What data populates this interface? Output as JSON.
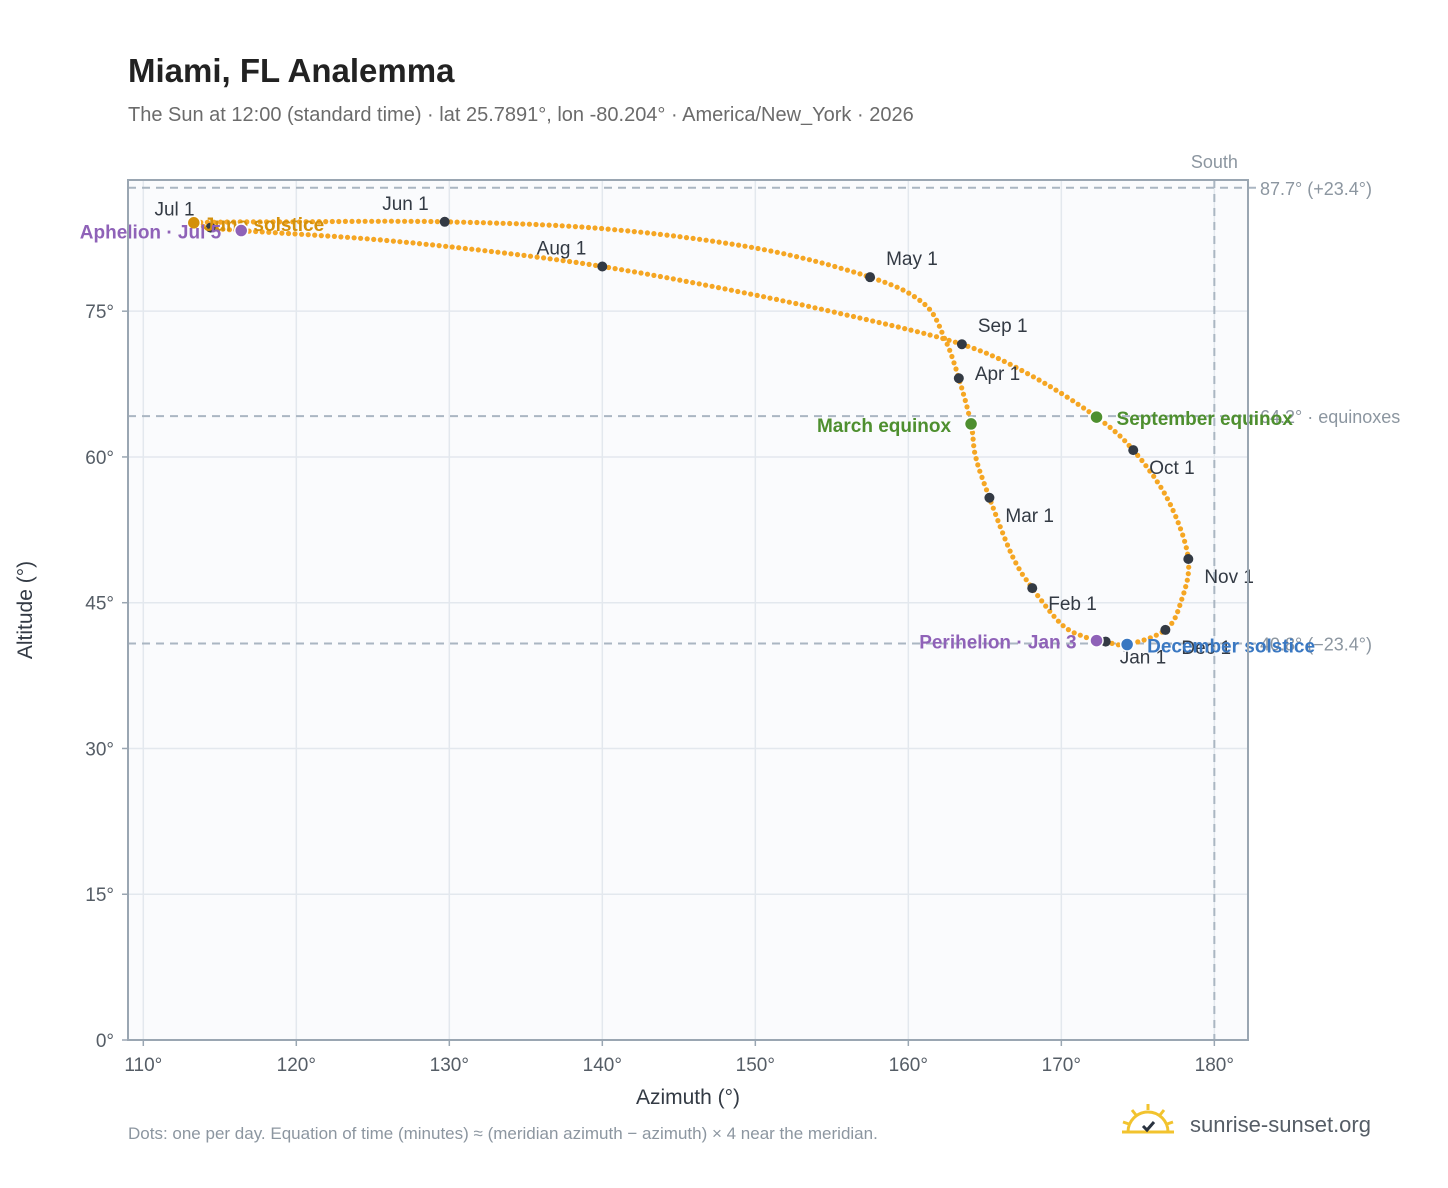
{
  "title": "Miami, FL Analemma",
  "subtitle": "The Sun at 12:00 (standard time) · lat 25.7891°, lon -80.204° · America/New_York · 2026",
  "footnote": "Dots: one per day. Equation of time (minutes) ≈ (meridian azimuth − azimuth) × 4 near the meridian.",
  "brand": {
    "name": "sunrise-sunset.org",
    "icon": "sun-logo-icon"
  },
  "colors": {
    "curve": "#f5a623",
    "month_dot": "#333a44",
    "equinox": "#4e8f2f",
    "solstice_june": "#d4900a",
    "solstice_dec": "#3a78c2",
    "apsis": "#8f62b8",
    "grid": "#e3e8ee",
    "plot_bg": "#fafbfd",
    "ref_line": "#aab6c2"
  },
  "chart_data": {
    "type": "scatter",
    "title": "Miami, FL Analemma",
    "xlabel": "Azimuth (°)",
    "ylabel": "Altitude (°)",
    "xlim": [
      109,
      182.2
    ],
    "ylim": [
      0,
      88.5
    ],
    "xticks": [
      110,
      120,
      130,
      140,
      150,
      160,
      170,
      180
    ],
    "xtick_labels": [
      "110°",
      "120°",
      "130°",
      "140°",
      "150°",
      "160°",
      "170°",
      "180°"
    ],
    "yticks": [
      0,
      15,
      30,
      45,
      60,
      75
    ],
    "ytick_labels": [
      "0°",
      "15°",
      "30°",
      "45°",
      "60°",
      "75°"
    ],
    "grid": true,
    "meridian": {
      "x": 180,
      "label": "South"
    },
    "reference_lines": [
      {
        "y": 87.7,
        "label": "87.7° (+23.4°)"
      },
      {
        "y": 64.2,
        "label": "64.2° · equinoxes"
      },
      {
        "y": 40.8,
        "label": "40.8° (−23.4°)"
      }
    ],
    "month_points": [
      {
        "label": "Jan 1",
        "x": 172.9,
        "y": 41.0
      },
      {
        "label": "Feb 1",
        "x": 168.1,
        "y": 46.5
      },
      {
        "label": "Mar 1",
        "x": 165.3,
        "y": 55.8
      },
      {
        "label": "Apr 1",
        "x": 163.3,
        "y": 68.1
      },
      {
        "label": "May 1",
        "x": 157.5,
        "y": 78.5
      },
      {
        "label": "Jun 1",
        "x": 129.7,
        "y": 84.2
      },
      {
        "label": "Jul 1",
        "x": 114.4,
        "y": 83.6
      },
      {
        "label": "Aug 1",
        "x": 140.0,
        "y": 79.6
      },
      {
        "label": "Sep 1",
        "x": 163.5,
        "y": 71.6
      },
      {
        "label": "Oct 1",
        "x": 174.7,
        "y": 60.7
      },
      {
        "label": "Nov 1",
        "x": 178.3,
        "y": 49.5
      },
      {
        "label": "Dec 1",
        "x": 176.8,
        "y": 42.2
      }
    ],
    "events": [
      {
        "label": "March equinox",
        "x": 164.1,
        "y": 63.4,
        "kind": "equinox"
      },
      {
        "label": "September equinox",
        "x": 172.3,
        "y": 64.1,
        "kind": "equinox"
      },
      {
        "label": "June solstice",
        "x": 113.3,
        "y": 84.1,
        "kind": "solstice_june"
      },
      {
        "label": "December solstice",
        "x": 174.3,
        "y": 40.7,
        "kind": "solstice_dec"
      },
      {
        "label": "Perihelion · Jan 3",
        "x": 172.3,
        "y": 41.1,
        "kind": "apsis"
      },
      {
        "label": "Aphelion · Jul 5",
        "x": 116.4,
        "y": 83.3,
        "kind": "apsis"
      }
    ],
    "curve_path": [
      {
        "x": 172.9,
        "y": 41.0
      },
      {
        "x": 171.5,
        "y": 41.5
      },
      {
        "x": 170.0,
        "y": 42.8
      },
      {
        "x": 168.1,
        "y": 46.5
      },
      {
        "x": 166.8,
        "y": 49.8
      },
      {
        "x": 165.3,
        "y": 55.8
      },
      {
        "x": 164.4,
        "y": 60.0
      },
      {
        "x": 164.1,
        "y": 63.4
      },
      {
        "x": 163.3,
        "y": 68.1
      },
      {
        "x": 162.4,
        "y": 72.1
      },
      {
        "x": 161.0,
        "y": 75.8
      },
      {
        "x": 157.5,
        "y": 78.5
      },
      {
        "x": 150.0,
        "y": 81.5
      },
      {
        "x": 140.0,
        "y": 83.5
      },
      {
        "x": 129.7,
        "y": 84.2
      },
      {
        "x": 120.0,
        "y": 84.2
      },
      {
        "x": 113.3,
        "y": 84.1
      },
      {
        "x": 114.4,
        "y": 83.6
      },
      {
        "x": 116.4,
        "y": 83.3
      },
      {
        "x": 125.0,
        "y": 82.4
      },
      {
        "x": 133.0,
        "y": 81.1
      },
      {
        "x": 140.0,
        "y": 79.6
      },
      {
        "x": 148.0,
        "y": 77.3
      },
      {
        "x": 156.0,
        "y": 74.6
      },
      {
        "x": 163.5,
        "y": 71.6
      },
      {
        "x": 168.0,
        "y": 68.4
      },
      {
        "x": 172.3,
        "y": 64.1
      },
      {
        "x": 174.7,
        "y": 60.7
      },
      {
        "x": 177.0,
        "y": 55.5
      },
      {
        "x": 178.3,
        "y": 49.5
      },
      {
        "x": 177.8,
        "y": 45.0
      },
      {
        "x": 176.8,
        "y": 42.2
      },
      {
        "x": 174.3,
        "y": 40.7
      },
      {
        "x": 172.9,
        "y": 41.0
      }
    ]
  }
}
